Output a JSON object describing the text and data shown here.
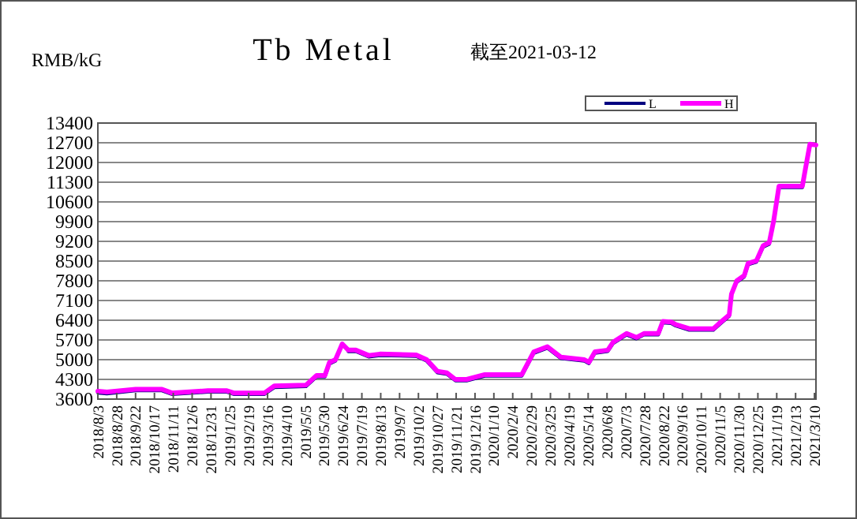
{
  "chart_data": {
    "type": "line",
    "title": "Tb Metal",
    "subtitle": "截至2021-03-12",
    "ylabel": "RMB/kG",
    "x": [
      "2018-08-03",
      "2018-08-15",
      "2018-09-22",
      "2018-10-27",
      "2018-11-09",
      "2018-12-27",
      "2019-01-21",
      "2019-01-30",
      "2019-03-12",
      "2019-03-25",
      "2019-05-06",
      "2019-05-20",
      "2019-05-31",
      "2019-06-06",
      "2019-06-14",
      "2019-06-23",
      "2019-07-01",
      "2019-07-11",
      "2019-07-28",
      "2019-08-12",
      "2019-09-29",
      "2019-10-13",
      "2019-10-27",
      "2019-11-09",
      "2019-11-20",
      "2019-12-05",
      "2019-12-29",
      "2020-02-16",
      "2020-03-03",
      "2020-03-21",
      "2020-04-08",
      "2020-05-09",
      "2020-05-15",
      "2020-05-23",
      "2020-06-09",
      "2020-06-16",
      "2020-07-04",
      "2020-07-17",
      "2020-07-27",
      "2020-08-15",
      "2020-08-21",
      "2020-09-01",
      "2020-09-07",
      "2020-09-25",
      "2020-10-27",
      "2020-11-03",
      "2020-11-17",
      "2020-11-20",
      "2020-11-27",
      "2020-12-07",
      "2020-12-12",
      "2020-12-23",
      "2021-01-01",
      "2021-01-09",
      "2021-01-15",
      "2021-01-22",
      "2021-02-22",
      "2021-02-25",
      "2021-03-04",
      "2021-03-12"
    ],
    "series": [
      {
        "name": "L",
        "color": "#000080",
        "values": [
          3820,
          3790,
          3900,
          3900,
          3770,
          3850,
          3850,
          3770,
          3770,
          4010,
          4050,
          4390,
          4390,
          4850,
          4950,
          null,
          5290,
          5290,
          5100,
          5150,
          5120,
          4950,
          4540,
          4480,
          4250,
          4250,
          4420,
          4420,
          5230,
          5410,
          5040,
          4950,
          4860,
          5230,
          5290,
          5570,
          5880,
          5740,
          5880,
          5880,
          6310,
          6290,
          6200,
          6050,
          6050,
          6220,
          6540,
          null,
          7750,
          7940,
          8370,
          8460,
          9000,
          9100,
          null,
          11110,
          11110,
          null,
          null,
          null
        ]
      },
      {
        "name": "H",
        "color": "#ff00ff",
        "values": [
          3880,
          3850,
          3950,
          3950,
          3820,
          3900,
          3900,
          3820,
          3820,
          4070,
          4100,
          4440,
          4440,
          4900,
          5000,
          5560,
          5340,
          5340,
          5150,
          5200,
          5170,
          5000,
          4590,
          4530,
          4300,
          4300,
          4470,
          4470,
          5280,
          5460,
          5090,
          5000,
          4910,
          5280,
          5340,
          5620,
          5930,
          5790,
          5930,
          5930,
          6360,
          6340,
          6250,
          6100,
          6100,
          6270,
          6590,
          7330,
          7800,
          7990,
          8420,
          8510,
          9050,
          9150,
          9940,
          11160,
          11160,
          11620,
          12650,
          12620
        ]
      }
    ],
    "xlim": [
      "2018-08-03",
      "2021-03-12"
    ],
    "xticks": [
      {
        "value": "2018-08-03",
        "label": "2018/8/3"
      },
      {
        "value": "2018-08-28",
        "label": "2018/8/28"
      },
      {
        "value": "2018-09-22",
        "label": "2018/9/22"
      },
      {
        "value": "2018-10-17",
        "label": "2018/10/17"
      },
      {
        "value": "2018-11-11",
        "label": "2018/11/11"
      },
      {
        "value": "2018-12-06",
        "label": "2018/12/6"
      },
      {
        "value": "2018-12-31",
        "label": "2018/12/31"
      },
      {
        "value": "2019-01-25",
        "label": "2019/1/25"
      },
      {
        "value": "2019-02-19",
        "label": "2019/2/19"
      },
      {
        "value": "2019-03-16",
        "label": "2019/3/16"
      },
      {
        "value": "2019-04-10",
        "label": "2019/4/10"
      },
      {
        "value": "2019-05-05",
        "label": "2019/5/5"
      },
      {
        "value": "2019-05-30",
        "label": "2019/5/30"
      },
      {
        "value": "2019-06-24",
        "label": "2019/6/24"
      },
      {
        "value": "2019-07-19",
        "label": "2019/7/19"
      },
      {
        "value": "2019-08-13",
        "label": "2019/8/13"
      },
      {
        "value": "2019-09-07",
        "label": "2019/9/7"
      },
      {
        "value": "2019-10-02",
        "label": "2019/10/2"
      },
      {
        "value": "2019-10-27",
        "label": "2019/10/27"
      },
      {
        "value": "2019-11-21",
        "label": "2019/11/21"
      },
      {
        "value": "2019-12-16",
        "label": "2019/12/16"
      },
      {
        "value": "2020-01-10",
        "label": "2020/1/10"
      },
      {
        "value": "2020-02-04",
        "label": "2020/2/4"
      },
      {
        "value": "2020-02-29",
        "label": "2020/2/29"
      },
      {
        "value": "2020-03-25",
        "label": "2020/3/25"
      },
      {
        "value": "2020-04-19",
        "label": "2020/4/19"
      },
      {
        "value": "2020-05-14",
        "label": "2020/5/14"
      },
      {
        "value": "2020-06-08",
        "label": "2020/6/8"
      },
      {
        "value": "2020-07-03",
        "label": "2020/7/3"
      },
      {
        "value": "2020-07-28",
        "label": "2020/7/28"
      },
      {
        "value": "2020-08-22",
        "label": "2020/8/22"
      },
      {
        "value": "2020-09-16",
        "label": "2020/9/16"
      },
      {
        "value": "2020-10-11",
        "label": "2020/10/11"
      },
      {
        "value": "2020-11-05",
        "label": "2020/11/5"
      },
      {
        "value": "2020-11-30",
        "label": "2020/11/30"
      },
      {
        "value": "2020-12-25",
        "label": "2020/12/25"
      },
      {
        "value": "2021-01-19",
        "label": "2021/1/19"
      },
      {
        "value": "2021-02-13",
        "label": "2021/2/13"
      },
      {
        "value": "2021-03-10",
        "label": "2021/3/10"
      }
    ],
    "ylim": [
      3600,
      13400
    ],
    "yticks": [
      3600,
      4300,
      5000,
      5700,
      6400,
      7100,
      7800,
      8500,
      9200,
      9900,
      10600,
      11300,
      12000,
      12700,
      13400
    ],
    "grid": "y",
    "legend": "top right",
    "marker": "none",
    "line_style": "solid"
  }
}
